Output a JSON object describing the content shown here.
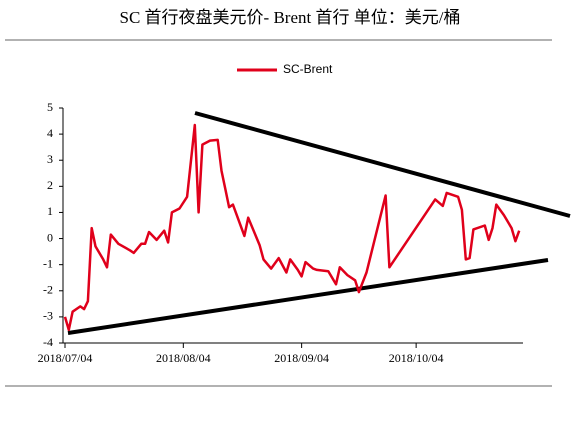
{
  "chart_data": {
    "type": "line",
    "title": "SC 首行夜盘美元价- Brent 首行  单位：美元/桶",
    "x": [
      "2018/07/04",
      "2018/07/05",
      "2018/07/06",
      "2018/07/08",
      "2018/07/09",
      "2018/07/10",
      "2018/07/11",
      "2018/07/12",
      "2018/07/14",
      "2018/07/15",
      "2018/07/16",
      "2018/07/18",
      "2018/07/21",
      "2018/07/22",
      "2018/07/24",
      "2018/07/25",
      "2018/07/26",
      "2018/07/28",
      "2018/07/30",
      "2018/07/31",
      "2018/08/01",
      "2018/08/03",
      "2018/08/05",
      "2018/08/07",
      "2018/08/08",
      "2018/08/09",
      "2018/08/11",
      "2018/08/13",
      "2018/08/14",
      "2018/08/15",
      "2018/08/16",
      "2018/08/17",
      "2018/08/20",
      "2018/08/21",
      "2018/08/24",
      "2018/08/25",
      "2018/08/27",
      "2018/08/29",
      "2018/08/31",
      "2018/09/01",
      "2018/09/03",
      "2018/09/04",
      "2018/09/05",
      "2018/09/07",
      "2018/09/08",
      "2018/09/11",
      "2018/09/13",
      "2018/09/14",
      "2018/09/16",
      "2018/09/18",
      "2018/09/19",
      "2018/09/21",
      "2018/09/26",
      "2018/09/27",
      "2018/10/09",
      "2018/10/11",
      "2018/10/12",
      "2018/10/15",
      "2018/10/16",
      "2018/10/17",
      "2018/10/18",
      "2018/10/19",
      "2018/10/22",
      "2018/10/23",
      "2018/10/24",
      "2018/10/25",
      "2018/10/27",
      "2018/10/29",
      "2018/10/30",
      "2018/10/31"
    ],
    "series": [
      {
        "name": "SC-Brent",
        "color": "#e0001b",
        "values": [
          -3.0,
          -3.5,
          -2.8,
          -2.6,
          -2.7,
          -2.4,
          0.4,
          -0.3,
          -0.8,
          -1.1,
          0.15,
          -0.2,
          -0.45,
          -0.55,
          -0.2,
          -0.2,
          0.25,
          -0.05,
          0.3,
          -0.15,
          1.0,
          1.15,
          1.6,
          4.35,
          1.0,
          3.6,
          3.75,
          3.78,
          2.6,
          1.9,
          1.2,
          1.3,
          0.1,
          0.8,
          -0.25,
          -0.8,
          -1.15,
          -0.75,
          -1.3,
          -0.8,
          -1.2,
          -1.45,
          -0.9,
          -1.15,
          -1.2,
          -1.25,
          -1.75,
          -1.1,
          -1.4,
          -1.6,
          -2.05,
          -1.3,
          1.65,
          -1.1,
          1.5,
          1.25,
          1.75,
          1.6,
          1.1,
          -0.8,
          -0.75,
          0.35,
          0.5,
          -0.05,
          0.4,
          1.3,
          0.9,
          0.4,
          -0.1,
          0.3
        ]
      }
    ],
    "xlim": [
      "2018/07/04",
      "2018/11/01"
    ],
    "xticks": [
      "2018/07/04",
      "2018/08/04",
      "2018/09/04",
      "2018/10/04"
    ],
    "ylim": [
      -4,
      5
    ],
    "yticks": [
      -4,
      -3,
      -2,
      -1,
      0,
      1,
      2,
      3,
      4,
      5
    ]
  }
}
